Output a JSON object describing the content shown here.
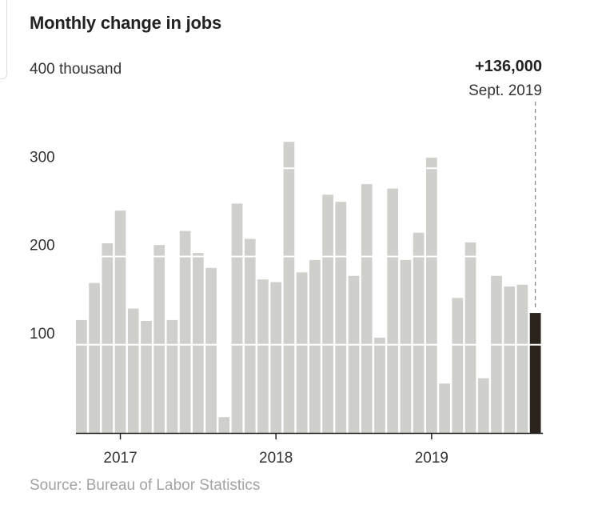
{
  "title": "Monthly change in jobs",
  "source": "Source: Bureau of Labor Statistics",
  "annotation": {
    "value": "+136,000",
    "date": "Sept. 2019"
  },
  "colors": {
    "bar": "#cfcfcb",
    "highlight": "#2b241c",
    "gridline": "#ffffff",
    "axis": "#222222"
  },
  "chart_data": {
    "type": "bar",
    "title": "Monthly change in jobs",
    "ylabel": "",
    "xlabel": "",
    "ylim": [
      0,
      400
    ],
    "y_ticks": [
      100,
      200,
      300,
      400
    ],
    "y_tick_labels": [
      "100",
      "200",
      "300",
      "400 thousand"
    ],
    "x_tick_labels": [
      "2017",
      "2018",
      "2019"
    ],
    "x_tick_months": [
      "2017-01",
      "2018-01",
      "2019-01"
    ],
    "grid": true,
    "categories": [
      "2016-10",
      "2016-11",
      "2016-12",
      "2017-01",
      "2017-02",
      "2017-03",
      "2017-04",
      "2017-05",
      "2017-06",
      "2017-07",
      "2017-08",
      "2017-09",
      "2017-10",
      "2017-11",
      "2017-12",
      "2018-01",
      "2018-02",
      "2018-03",
      "2018-04",
      "2018-05",
      "2018-06",
      "2018-07",
      "2018-08",
      "2018-09",
      "2018-10",
      "2018-11",
      "2018-12",
      "2019-01",
      "2019-02",
      "2019-03",
      "2019-04",
      "2019-05",
      "2019-06",
      "2019-07",
      "2019-08",
      "2019-09"
    ],
    "values": [
      128,
      170,
      215,
      252,
      141,
      127,
      213,
      128,
      229,
      204,
      187,
      18,
      260,
      220,
      174,
      171,
      330,
      182,
      196,
      270,
      262,
      178,
      282,
      108,
      277,
      196,
      227,
      312,
      56,
      153,
      216,
      62,
      178,
      166,
      168,
      136
    ],
    "highlight_index": 35
  }
}
